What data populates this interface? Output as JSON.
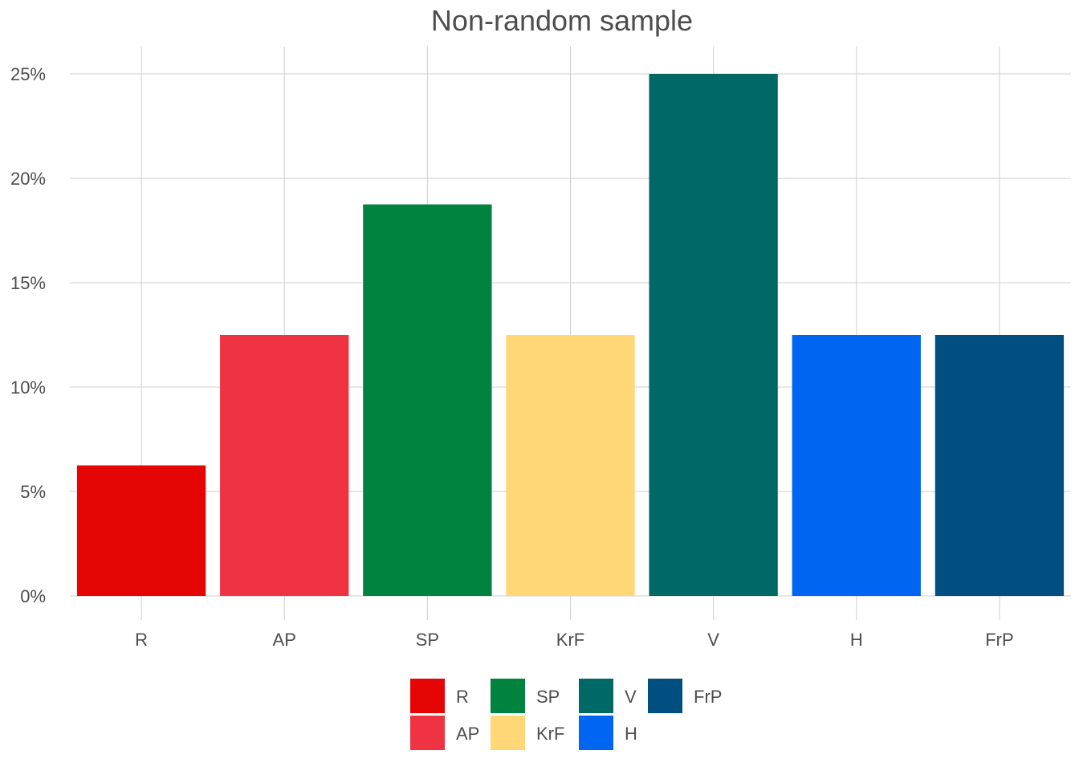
{
  "chart_data": {
    "type": "bar",
    "title": "Non-random sample",
    "xlabel": "",
    "ylabel": "",
    "categories": [
      "R",
      "AP",
      "SP",
      "KrF",
      "V",
      "H",
      "FrP"
    ],
    "values": [
      6.25,
      12.5,
      18.75,
      12.5,
      25,
      12.5,
      12.5
    ],
    "colors": [
      "#e60505",
      "#f03342",
      "#00833e",
      "#ffd777",
      "#006965",
      "#0065f1",
      "#004f80"
    ],
    "ylim": [
      0,
      25
    ],
    "yticks": [
      0,
      5,
      10,
      15,
      20,
      25
    ],
    "ytick_labels": [
      "0%",
      "5%",
      "10%",
      "15%",
      "20%",
      "25%"
    ],
    "grid": true,
    "legend": {
      "placement": "bottom",
      "entries": [
        "R",
        "AP",
        "SP",
        "KrF",
        "V",
        "H",
        "FrP"
      ]
    }
  }
}
